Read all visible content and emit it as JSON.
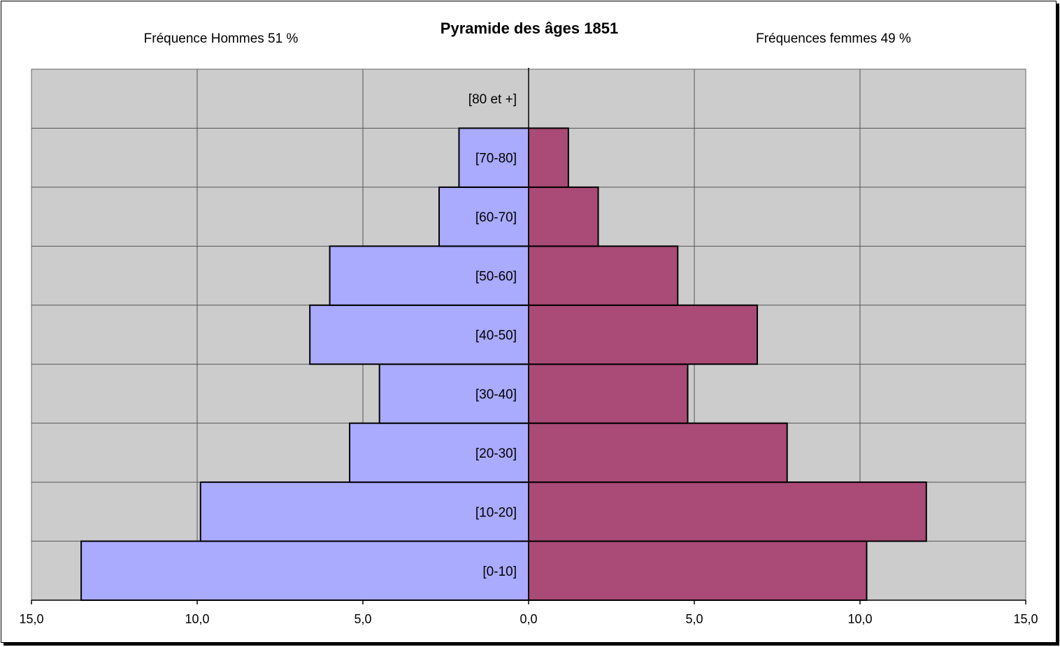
{
  "chart_data": {
    "type": "bar",
    "orientation": "horizontal-population-pyramid",
    "title": "Pyramide des âges 1851",
    "left_label": "Fréquence Hommes 51 %",
    "right_label": "Fréquences femmes 49 %",
    "categories": [
      "[0-10]",
      "[10-20]",
      "[20-30]",
      "[30-40]",
      "[40-50]",
      "[50-60]",
      "[60-70]",
      "[70-80]",
      "[80 et +]"
    ],
    "series": [
      {
        "name": "Hommes",
        "side": "left",
        "color": "#aaaaff",
        "values": [
          13.5,
          9.9,
          5.4,
          4.5,
          6.6,
          6.0,
          2.7,
          2.1,
          0.0
        ]
      },
      {
        "name": "Femmes",
        "side": "right",
        "color": "#aa4a76",
        "values": [
          10.2,
          12.0,
          7.8,
          4.8,
          6.9,
          4.5,
          2.1,
          1.2,
          0.0
        ]
      }
    ],
    "xlim": [
      -15,
      15
    ],
    "xticks": [
      -15,
      -10,
      -5,
      0,
      5,
      10,
      15
    ],
    "xtick_labels": [
      "15,0",
      "10,0",
      "5,0",
      "0,0",
      "5,0",
      "10,0",
      "15,0"
    ],
    "plot_background": "#cccccc",
    "grid": true
  }
}
